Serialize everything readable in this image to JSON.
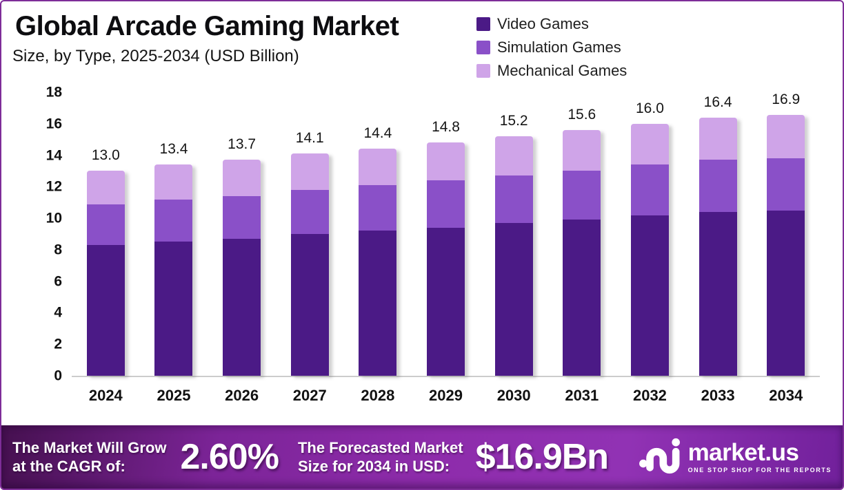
{
  "window": {
    "border_color": "#7e2d98"
  },
  "header": {
    "title": "Global Arcade Gaming Market",
    "subtitle": "Size, by Type, 2025-2034 (USD Billion)"
  },
  "chart_data": {
    "type": "bar",
    "stacked": true,
    "title": "Global Arcade Gaming Market",
    "subtitle": "Size, by Type, 2025-2034 (USD Billion)",
    "unit": "USD Billion",
    "categories": [
      "2024",
      "2025",
      "2026",
      "2027",
      "2028",
      "2029",
      "2030",
      "2031",
      "2032",
      "2033",
      "2034"
    ],
    "series": [
      {
        "name": "Video Games",
        "color": "#4b1a86",
        "values": [
          8.3,
          8.5,
          8.7,
          9.0,
          9.2,
          9.4,
          9.7,
          9.9,
          10.2,
          10.4,
          10.7
        ]
      },
      {
        "name": "Simulation Games",
        "color": "#8a50c8",
        "values": [
          2.6,
          2.7,
          2.7,
          2.8,
          2.9,
          3.0,
          3.0,
          3.1,
          3.2,
          3.3,
          3.4
        ]
      },
      {
        "name": "Mechanical Games",
        "color": "#cfa4e8",
        "values": [
          2.1,
          2.2,
          2.3,
          2.3,
          2.3,
          2.4,
          2.5,
          2.6,
          2.6,
          2.7,
          2.8
        ]
      }
    ],
    "totals": [
      13.0,
      13.4,
      13.7,
      14.1,
      14.4,
      14.8,
      15.2,
      15.6,
      16.0,
      16.4,
      16.9
    ],
    "total_labels": [
      "13.0",
      "13.4",
      "13.7",
      "14.1",
      "14.4",
      "14.8",
      "15.2",
      "15.6",
      "16.0",
      "16.4",
      "16.9"
    ],
    "y_axis": {
      "min": 0,
      "max": 18,
      "tick_step": 2,
      "ticks": [
        18,
        16,
        14,
        12,
        10,
        8,
        6,
        4,
        2,
        0
      ]
    },
    "grid": false,
    "legend_position": "top-right",
    "axis_line_color": "#cccccc"
  },
  "footer": {
    "cagr_line1": "The Market Will Grow",
    "cagr_line2": "at the CAGR of:",
    "cagr_value": "2.60%",
    "forecast_line1": "The Forecasted Market",
    "forecast_line2": "Size for 2034 in USD:",
    "forecast_value": "$16.9Bn",
    "brand_name": "market.us",
    "brand_tagline": "ONE STOP SHOP FOR THE REPORTS"
  }
}
